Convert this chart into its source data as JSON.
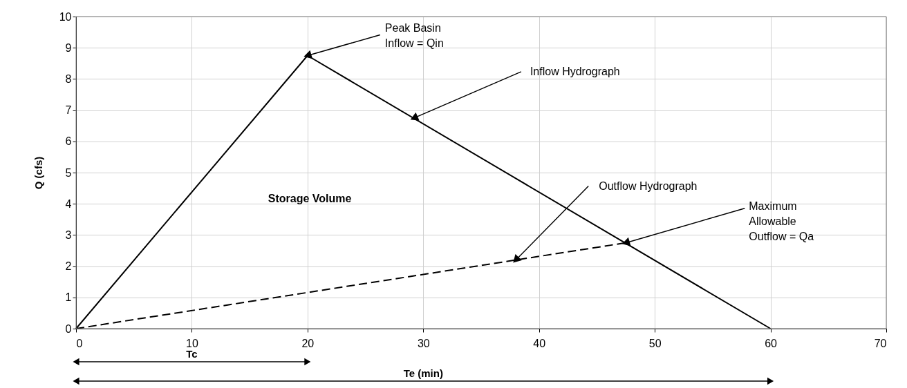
{
  "chart_data": {
    "type": "line",
    "ylabel": "Q (cfs)",
    "series": [
      {
        "color": "#000000",
        "line_style": "solid",
        "x": [
          0,
          20,
          60
        ],
        "values": [
          0,
          8.75,
          0
        ]
      },
      {
        "color": "#000000",
        "line_style": "dashed",
        "x": [
          0,
          47.5
        ],
        "values": [
          0,
          2.75
        ]
      }
    ],
    "xlim": [
      0,
      70
    ],
    "xticks": [
      0,
      10,
      20,
      30,
      40,
      50,
      60,
      70
    ],
    "ylim": [
      0,
      10
    ],
    "yticks": [
      0,
      1,
      2,
      3,
      4,
      5,
      6,
      7,
      8,
      9,
      10
    ],
    "grid": true,
    "annotations": [
      {
        "text": "Peak Basin\nInflow = Qin",
        "x": 20,
        "y": 8.75
      },
      {
        "text": "Inflow Hydrograph",
        "x": 29.2,
        "y": 6.75
      },
      {
        "text": "Outflow Hydrograph",
        "x": 38,
        "y": 2.2
      },
      {
        "text": "Maximum\nAllowable\nOutflow = Qa",
        "x": 47.5,
        "y": 2.75
      },
      "Storage Volume",
      "Tc",
      "Te (min)"
    ]
  }
}
